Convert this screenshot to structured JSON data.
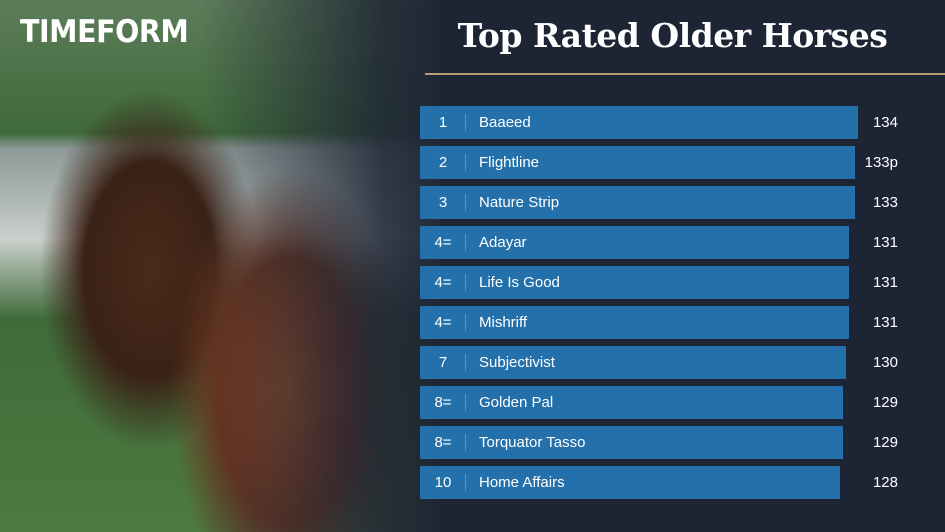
{
  "brand": {
    "logo_text": "TIMEFORM"
  },
  "chart_data": {
    "type": "bar",
    "orientation": "horizontal",
    "title": "Top Rated Older Horses",
    "ranks": [
      "1",
      "2",
      "3",
      "4=",
      "4=",
      "4=",
      "7",
      "8=",
      "8=",
      "10"
    ],
    "categories": [
      "Baaeed",
      "Flightline",
      "Nature Strip",
      "Adayar",
      "Life Is Good",
      "Mishriff",
      "Subjectivist",
      "Golden Pal",
      "Torquator Tasso",
      "Home Affairs"
    ],
    "values": [
      134,
      133,
      133,
      131,
      131,
      131,
      130,
      129,
      129,
      128
    ],
    "value_labels": [
      "134",
      "133p",
      "133",
      "131",
      "131",
      "131",
      "130",
      "129",
      "129",
      "128"
    ],
    "bar_color": "#2470ab",
    "grid": false
  },
  "colors": {
    "background": "#1d2434",
    "accent_rule": "#b79d6a"
  }
}
